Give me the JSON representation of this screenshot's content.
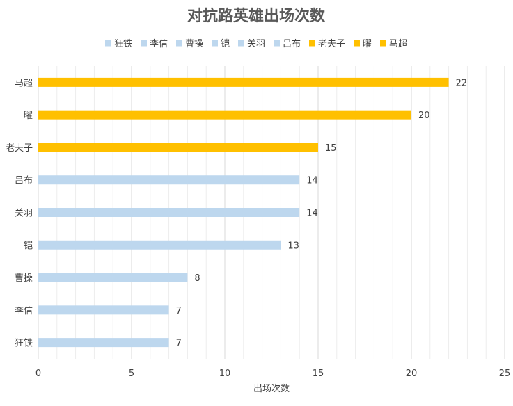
{
  "chart_data": {
    "type": "bar",
    "orientation": "horizontal",
    "title": "对抗路英雄出场次数",
    "xlabel": "出场次数",
    "ylabel": "",
    "xlim": [
      0,
      25
    ],
    "x_ticks": [
      0,
      5,
      10,
      15,
      20,
      25
    ],
    "grid": true,
    "legend_position": "top",
    "categories": [
      "狂铁",
      "李信",
      "曹操",
      "铠",
      "关羽",
      "吕布",
      "老夫子",
      "曜",
      "马超"
    ],
    "values": [
      7,
      7,
      8,
      13,
      14,
      14,
      15,
      20,
      22
    ],
    "bar_colors": [
      "#BDD7EE",
      "#BDD7EE",
      "#BDD7EE",
      "#BDD7EE",
      "#BDD7EE",
      "#BDD7EE",
      "#FFC000",
      "#FFC000",
      "#FFC000"
    ],
    "legend": [
      "狂铁",
      "李信",
      "曹操",
      "铠",
      "关羽",
      "吕布",
      "老夫子",
      "曜",
      "马超"
    ],
    "colors": {
      "base": "#BDD7EE",
      "highlight": "#FFC000",
      "major_grid": "#D9D9D9",
      "minor_grid": "#EDEDED",
      "text": "#404040",
      "title": "#595959"
    }
  }
}
